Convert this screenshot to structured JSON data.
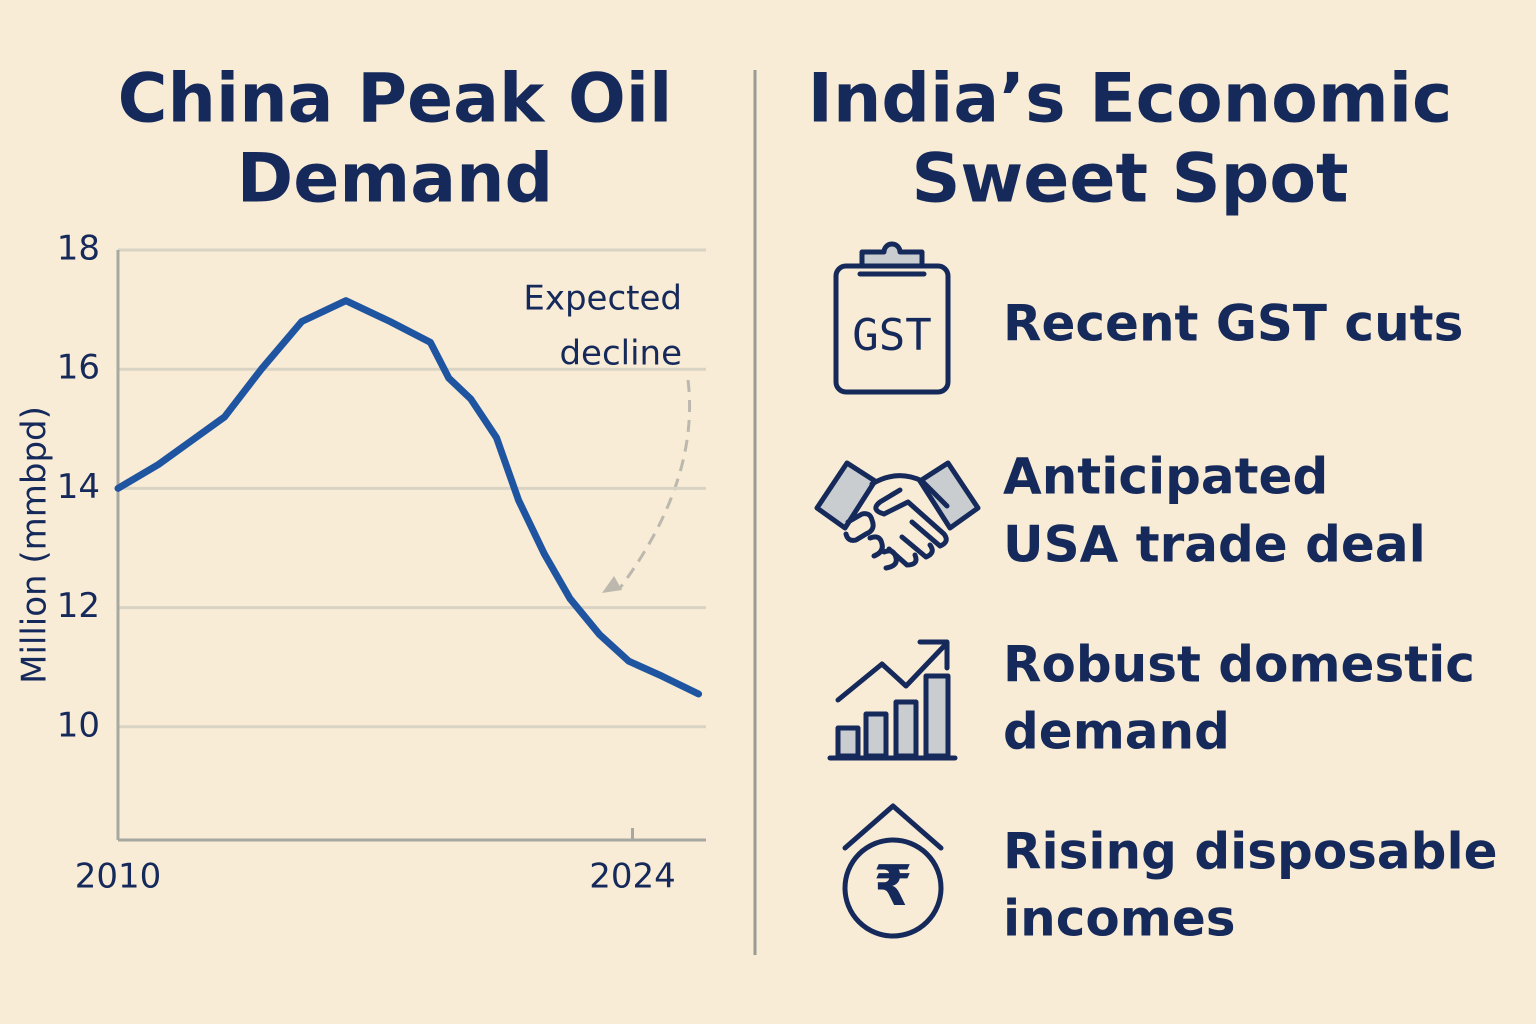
{
  "chart_data": {
    "type": "line",
    "title": [
      "China Peak Oil",
      "Demand"
    ],
    "y_label": "Million (mmbpd)",
    "annotation": [
      "Expected",
      "decline"
    ],
    "x": [
      2010,
      2011.1,
      2012,
      2012.9,
      2013.9,
      2015,
      2016.2,
      2017.4,
      2018.5,
      2019,
      2019.6,
      2020.3,
      2020.9,
      2021.6,
      2022.3,
      2023.1,
      2023.9,
      2024.8,
      2025.8
    ],
    "series": [
      {
        "color": "#1f55a0",
        "values": [
          14.0,
          14.4,
          14.8,
          15.2,
          16.0,
          16.8,
          17.15,
          16.8,
          16.45,
          15.85,
          15.5,
          14.85,
          13.8,
          12.9,
          12.15,
          11.55,
          11.1,
          10.85,
          10.55
        ]
      }
    ],
    "xlim": [
      2010,
      2026
    ],
    "xticks": [
      2010,
      2024
    ],
    "ylim": [
      8.1,
      18
    ],
    "yticks": [
      10,
      12,
      14,
      16,
      18
    ],
    "grid": true
  },
  "right_panel": {
    "title": [
      "India’s Economic",
      "Sweet Spot"
    ],
    "items": [
      {
        "icon_text": "GST",
        "lines": [
          "Recent GST cuts"
        ]
      },
      {
        "lines": [
          "Anticipated",
          "USA trade deal"
        ]
      },
      {
        "lines": [
          "Robust domestic",
          "demand"
        ]
      },
      {
        "icon_text": "₹",
        "lines": [
          "Rising disposable",
          "incomes"
        ]
      }
    ]
  }
}
